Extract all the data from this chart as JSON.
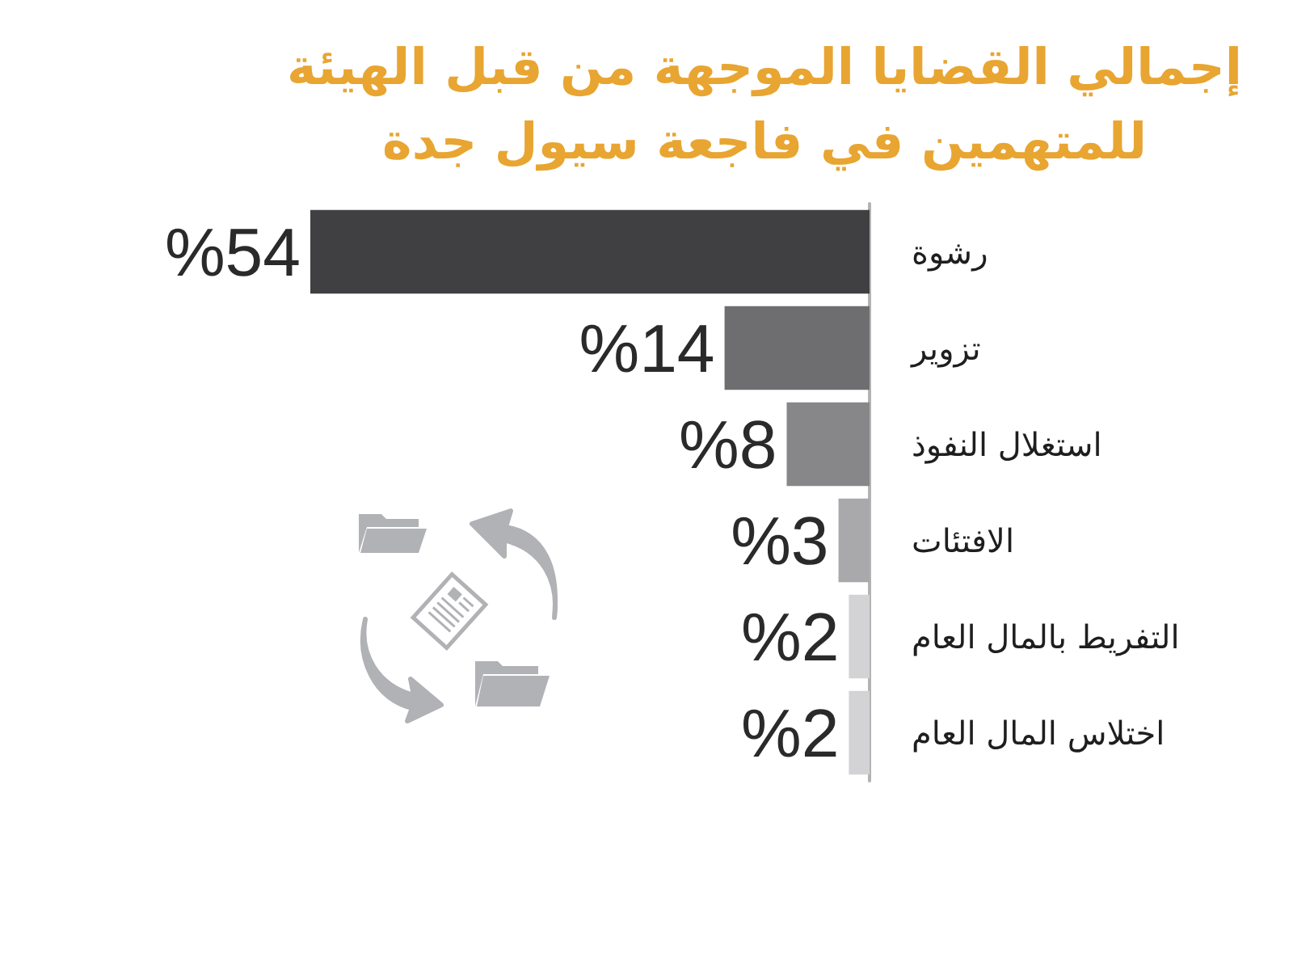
{
  "chart_data": {
    "type": "bar",
    "orientation": "horizontal",
    "title": "إجمالي القضايا الموجهة من قبل الهيئة للمتهمين في فاجعة سيول جدة",
    "categories": [
      "رشوة",
      "تزوير",
      "استغلال النفوذ",
      "الافتئات",
      "التفريط بالمال العام",
      "اختلاس المال العام"
    ],
    "values": [
      54,
      14,
      8,
      3,
      2,
      2
    ],
    "colors": [
      "#404042",
      "#6e6e70",
      "#87878a",
      "#a9a9ac",
      "#d3d3d5",
      "#d3d3d5"
    ],
    "value_labels": [
      "%54",
      "%14",
      "%8",
      "%3",
      "%2",
      "%2"
    ]
  }
}
